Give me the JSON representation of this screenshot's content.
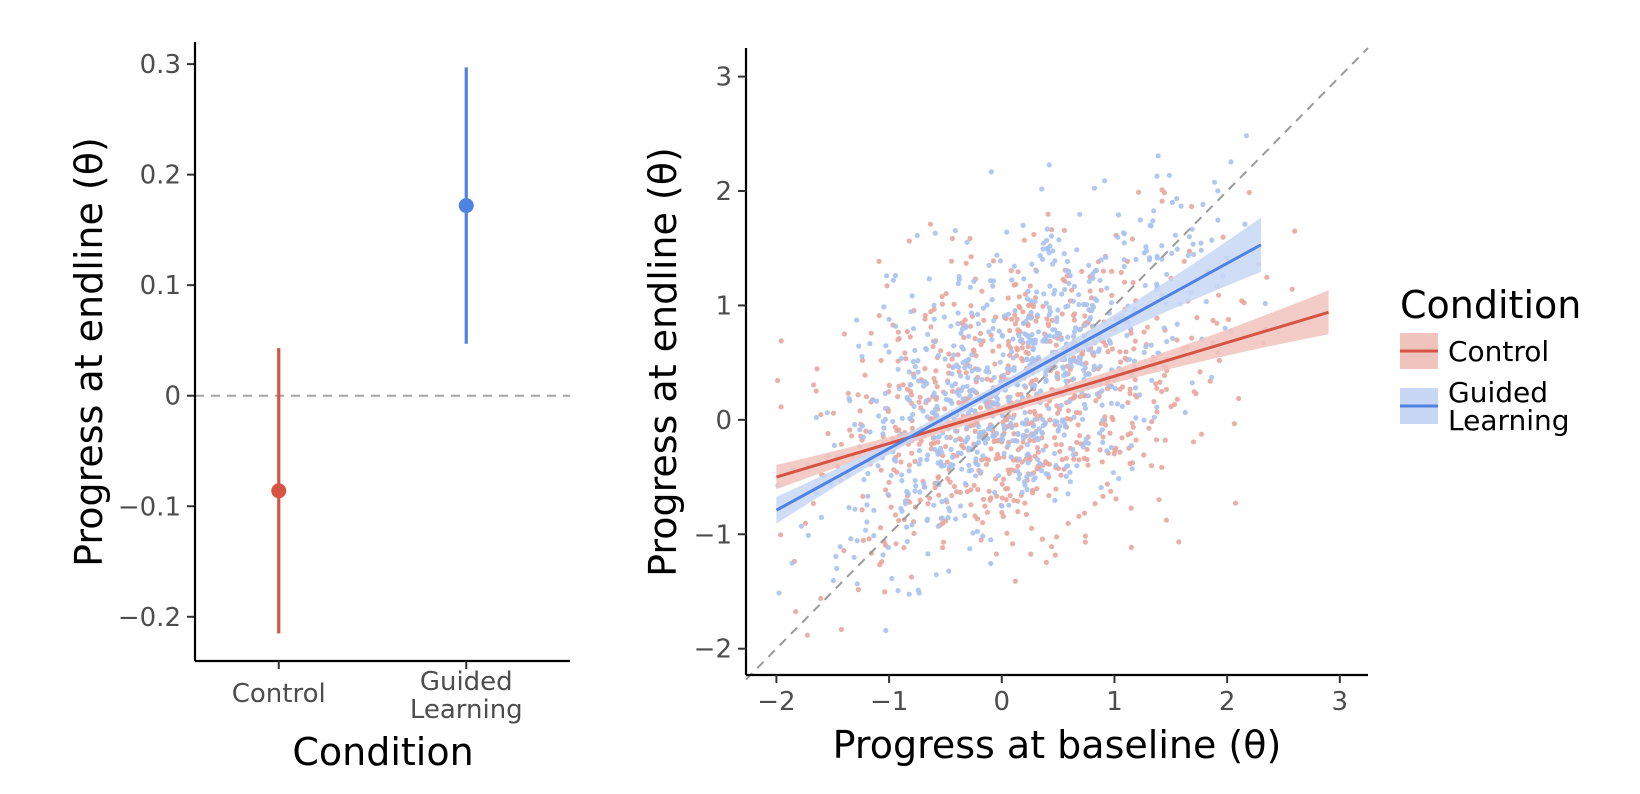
{
  "legend": {
    "title": "Condition",
    "entries": [
      {
        "label_lines": [
          "Control"
        ],
        "color": "#d65443",
        "band_color": "#f1c3bd"
      },
      {
        "label_lines": [
          "Guided",
          "Learning"
        ],
        "color": "#4f82e3",
        "band_color": "#c8d7f6"
      }
    ]
  },
  "chart_data": [
    {
      "type": "pointrange",
      "xlabel": "Condition",
      "ylabel": "Progress at endline (θ)",
      "ylim": [
        -0.24,
        0.32
      ],
      "yticks": [
        -0.2,
        -0.1,
        0,
        0.1,
        0.2,
        0.3
      ],
      "ytick_labels": [
        "−0.2",
        "−0.1",
        "0",
        "0.1",
        "0.2",
        "0.3"
      ],
      "reference_line": {
        "y": 0,
        "style": "dashed",
        "color": "#a6a6a6"
      },
      "categories": [
        {
          "label_lines": [
            "Control"
          ],
          "estimate": -0.086,
          "ci_low": -0.215,
          "ci_high": 0.043,
          "color": "#d65443"
        },
        {
          "label_lines": [
            "Guided",
            "Learning"
          ],
          "estimate": 0.172,
          "ci_low": 0.047,
          "ci_high": 0.297,
          "color": "#4f82e3"
        }
      ]
    },
    {
      "type": "scatter",
      "xlabel": "Progress at baseline (θ)",
      "ylabel": "Progress at endline (θ)",
      "xlim": [
        -2.27,
        3.25
      ],
      "ylim": [
        -2.23,
        3.25
      ],
      "xticks": [
        -2,
        -1,
        0,
        1,
        2,
        3
      ],
      "xtick_labels": [
        "−2",
        "−1",
        "0",
        "1",
        "2",
        "3"
      ],
      "yticks": [
        -2,
        -1,
        0,
        1,
        2,
        3
      ],
      "ytick_labels": [
        "−2",
        "−1",
        "0",
        "1",
        "2",
        "3"
      ],
      "reference_line": {
        "type": "identity",
        "slope": 1,
        "intercept": 0,
        "style": "dashed",
        "color": "#9a9a9a"
      },
      "series": [
        {
          "label": "Control",
          "color": "#d65443",
          "point_color": "#e8a79f",
          "band_color": "#f1c3bd",
          "n_points": 800,
          "x_range": [
            -2.0,
            2.9
          ],
          "fit": {
            "x": [
              -2.0,
              2.9
            ],
            "y": [
              -0.5,
              0.94
            ],
            "band_half_width": [
              0.11,
              0.1
            ]
          }
        },
        {
          "label": "Guided Learning",
          "color": "#4f82e3",
          "point_color": "#a9c3f0",
          "band_color": "#c8d7f6",
          "n_points": 800,
          "x_range": [
            -2.0,
            2.3
          ],
          "fit": {
            "x": [
              -2.0,
              2.3
            ],
            "y": [
              -0.79,
              1.53
            ],
            "band_half_width": [
              0.12,
              0.14
            ]
          }
        }
      ]
    }
  ]
}
